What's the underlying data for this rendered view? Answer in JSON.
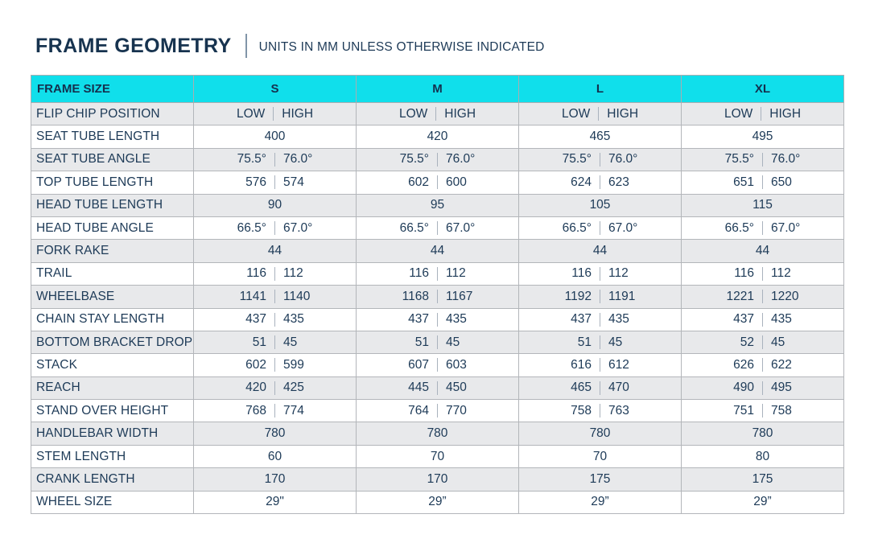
{
  "page": {
    "title": "FRAME GEOMETRY",
    "subtitle": "UNITS IN MM UNLESS OTHERWISE INDICATED"
  },
  "colors": {
    "header_cyan": "#10DFEB",
    "text_navy": "#1D3A57",
    "stripe_gray": "#E8E9EB",
    "border_gray": "#B3B6BA"
  },
  "table": {
    "header": [
      "FRAME SIZE",
      "S",
      "M",
      "L",
      "XL"
    ],
    "rows": [
      {
        "label": "FLIP CHIP POSITION",
        "values": [
          [
            "LOW",
            "HIGH"
          ],
          [
            "LOW",
            "HIGH"
          ],
          [
            "LOW",
            "HIGH"
          ],
          [
            "LOW",
            "HIGH"
          ]
        ]
      },
      {
        "label": "SEAT TUBE LENGTH",
        "values": [
          "400",
          "420",
          "465",
          "495"
        ]
      },
      {
        "label": "SEAT TUBE ANGLE",
        "values": [
          [
            "75.5°",
            "76.0°"
          ],
          [
            "75.5°",
            "76.0°"
          ],
          [
            "75.5°",
            "76.0°"
          ],
          [
            "75.5°",
            "76.0°"
          ]
        ]
      },
      {
        "label": "TOP TUBE LENGTH",
        "values": [
          [
            "576",
            "574"
          ],
          [
            "602",
            "600"
          ],
          [
            "624",
            "623"
          ],
          [
            "651",
            "650"
          ]
        ]
      },
      {
        "label": "HEAD TUBE LENGTH",
        "values": [
          "90",
          "95",
          "105",
          "115"
        ]
      },
      {
        "label": "HEAD TUBE ANGLE",
        "values": [
          [
            "66.5°",
            "67.0°"
          ],
          [
            "66.5°",
            "67.0°"
          ],
          [
            "66.5°",
            "67.0°"
          ],
          [
            "66.5°",
            "67.0°"
          ]
        ]
      },
      {
        "label": "FORK RAKE",
        "values": [
          "44",
          "44",
          "44",
          "44"
        ]
      },
      {
        "label": "TRAIL",
        "values": [
          [
            "116",
            "112"
          ],
          [
            "116",
            "112"
          ],
          [
            "116",
            "112"
          ],
          [
            "116",
            "112"
          ]
        ]
      },
      {
        "label": "WHEELBASE",
        "values": [
          [
            "1141",
            "1140"
          ],
          [
            "1168",
            "1167"
          ],
          [
            "1192",
            "1191"
          ],
          [
            "1221",
            "1220"
          ]
        ]
      },
      {
        "label": "CHAIN STAY LENGTH",
        "values": [
          [
            "437",
            "435"
          ],
          [
            "437",
            "435"
          ],
          [
            "437",
            "435"
          ],
          [
            "437",
            "435"
          ]
        ]
      },
      {
        "label": "BOTTOM BRACKET DROP",
        "values": [
          [
            "51",
            "45"
          ],
          [
            "51",
            "45"
          ],
          [
            "51",
            "45"
          ],
          [
            "52",
            "45"
          ]
        ]
      },
      {
        "label": "STACK",
        "values": [
          [
            "602",
            "599"
          ],
          [
            "607",
            "603"
          ],
          [
            "616",
            "612"
          ],
          [
            "626",
            "622"
          ]
        ]
      },
      {
        "label": "REACH",
        "values": [
          [
            "420",
            "425"
          ],
          [
            "445",
            "450"
          ],
          [
            "465",
            "470"
          ],
          [
            "490",
            "495"
          ]
        ]
      },
      {
        "label": "STAND OVER HEIGHT",
        "values": [
          [
            "768",
            "774"
          ],
          [
            "764",
            "770"
          ],
          [
            "758",
            "763"
          ],
          [
            "751",
            "758"
          ]
        ]
      },
      {
        "label": "HANDLEBAR WIDTH",
        "values": [
          "780",
          "780",
          "780",
          "780"
        ]
      },
      {
        "label": "STEM LENGTH",
        "values": [
          "60",
          "70",
          "70",
          "80"
        ]
      },
      {
        "label": "CRANK LENGTH",
        "values": [
          "170",
          "170",
          "175",
          "175"
        ]
      },
      {
        "label": "WHEEL SIZE",
        "values": [
          "29\"",
          "29”",
          "29”",
          "29”"
        ]
      }
    ]
  }
}
